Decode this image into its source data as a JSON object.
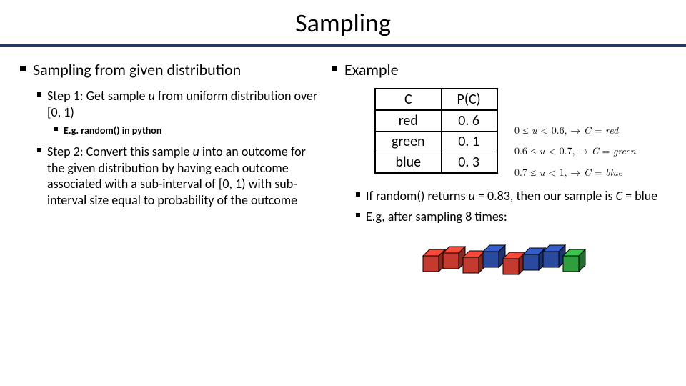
{
  "title": "Sampling",
  "left": {
    "heading": "Sampling from given distribution",
    "step1": "Step 1: Get sample ",
    "step1_u": "u",
    "step1_rest": " from uniform distribution over [0, 1)",
    "step1_sub": "E.g. random() in python",
    "step2a": "Step 2: Convert this sample ",
    "step2_u": "u",
    "step2b": " into an outcome for the given distribution by having each outcome associated with a sub-interval of [0, 1) with sub-interval size equal to probability of the outcome"
  },
  "right": {
    "heading": "Example",
    "table": {
      "headers": [
        "C",
        "P(C)"
      ],
      "rows": [
        [
          "red",
          "0. 6"
        ],
        [
          "green",
          "0. 1"
        ],
        [
          "blue",
          "0. 3"
        ]
      ]
    },
    "note1a": "If random() returns ",
    "note1_u": "u",
    "note1b": " = 0.83, then our sample is ",
    "note1_C": "C",
    "note1c": " = blue",
    "note2": "E.g, after sampling 8 times:"
  },
  "math": {
    "line1": "0 ≤ u < 0.6,  → C = red",
    "line2": "0.6 ≤ u < 0.7, → C = green",
    "line3": "0.7 ≤ u < 1,  → C = blue"
  },
  "cubes": {
    "colors": {
      "red": "#c43a2e",
      "blue": "#2a4aa0",
      "green": "#2f9e3f"
    },
    "sequence": [
      "red",
      "red",
      "red",
      "blue",
      "red",
      "blue",
      "blue",
      "green"
    ]
  }
}
